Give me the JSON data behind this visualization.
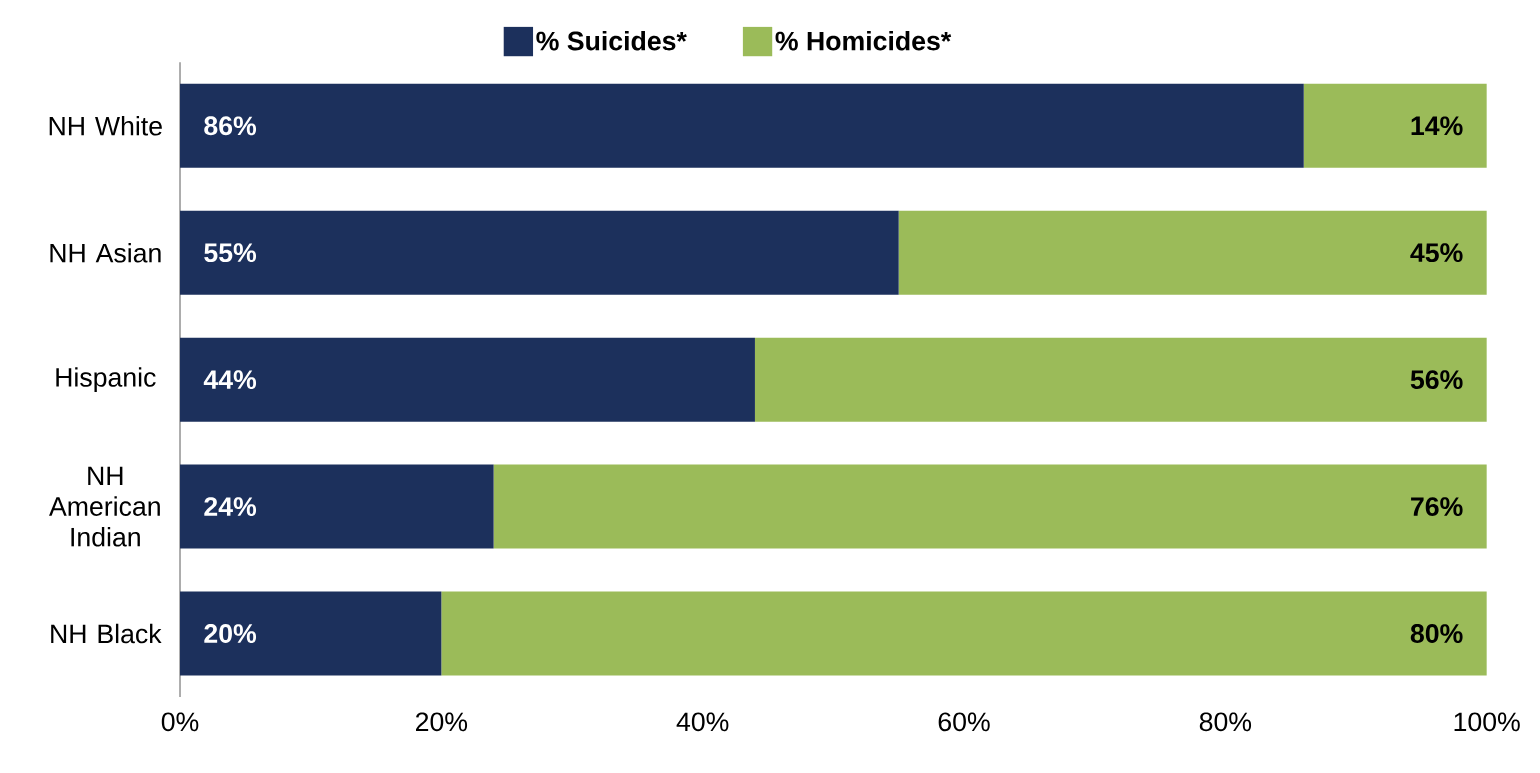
{
  "chart_data": {
    "type": "bar",
    "orientation": "horizontal",
    "stacked": true,
    "categories": [
      "NH White",
      "NH Asian",
      "Hispanic",
      "NH American Indian",
      "NH Black"
    ],
    "series": [
      {
        "name": "% Suicides*",
        "color": "#1c305c",
        "values": [
          86,
          55,
          44,
          24,
          20
        ],
        "value_labels": [
          "86%",
          "55%",
          "44%",
          "24%",
          "20%"
        ]
      },
      {
        "name": "% Homicides*",
        "color": "#9bbb59",
        "values": [
          14,
          45,
          56,
          76,
          80
        ],
        "value_labels": [
          "14%",
          "45%",
          "56%",
          "76%",
          "80%"
        ]
      }
    ],
    "xlim": [
      0,
      100
    ],
    "xticks": [
      {
        "value": 0,
        "label": "0%"
      },
      {
        "value": 20,
        "label": "20%"
      },
      {
        "value": 40,
        "label": "40%"
      },
      {
        "value": 60,
        "label": "60%"
      },
      {
        "value": 80,
        "label": "80%"
      },
      {
        "value": 100,
        "label": "100%"
      }
    ],
    "legend": "top"
  }
}
